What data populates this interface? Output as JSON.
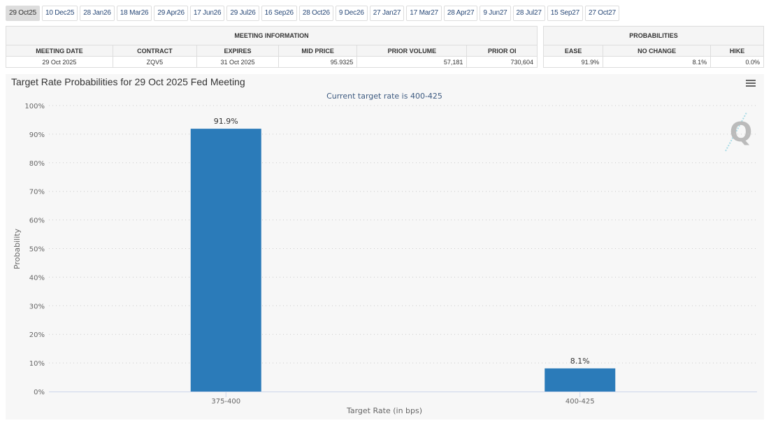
{
  "tabs": [
    "29 Oct25",
    "10 Dec25",
    "28 Jan26",
    "18 Mar26",
    "29 Apr26",
    "17 Jun26",
    "29 Jul26",
    "16 Sep26",
    "28 Oct26",
    "9 Dec26",
    "27 Jan27",
    "17 Mar27",
    "28 Apr27",
    "9 Jun27",
    "28 Jul27",
    "15 Sep27",
    "27 Oct27"
  ],
  "active_tab": "29 Oct25",
  "meeting_info": {
    "title": "MEETING INFORMATION",
    "headers": [
      "MEETING DATE",
      "CONTRACT",
      "EXPIRES",
      "MID PRICE",
      "PRIOR VOLUME",
      "PRIOR OI"
    ],
    "row": [
      "29 Oct 2025",
      "ZQV5",
      "31 Oct 2025",
      "95.9325",
      "57,181",
      "730,604"
    ]
  },
  "probabilities": {
    "title": "PROBABILITIES",
    "headers": [
      "EASE",
      "NO CHANGE",
      "HIKE"
    ],
    "row": [
      "91.9%",
      "8.1%",
      "0.0%"
    ]
  },
  "chart_data": {
    "type": "bar",
    "title": "Target Rate Probabilities for 29 Oct 2025 Fed Meeting",
    "subtitle": "Current target rate is 400-425",
    "xlabel": "Target Rate (in bps)",
    "ylabel": "Probability",
    "categories": [
      "375-400",
      "400-425"
    ],
    "values": [
      91.9,
      8.1
    ],
    "data_labels": [
      "91.9%",
      "8.1%"
    ],
    "ylim": [
      0,
      100
    ],
    "yticks": [
      "0%",
      "10%",
      "20%",
      "30%",
      "40%",
      "50%",
      "60%",
      "70%",
      "80%",
      "90%",
      "100%"
    ],
    "grid": true,
    "bar_color": "#2b7bb9",
    "menu_icon": "hamburger-menu-icon",
    "watermark": "Q"
  }
}
